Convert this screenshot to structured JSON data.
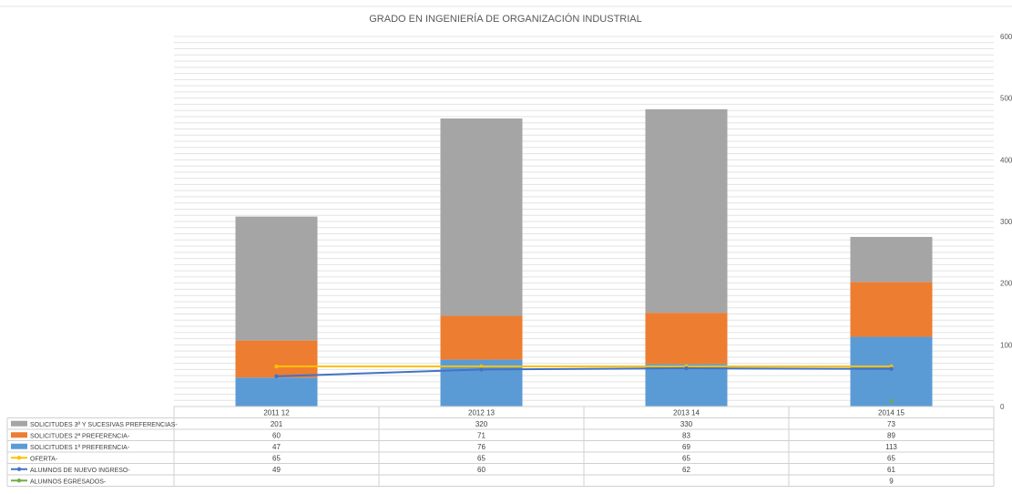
{
  "chart_data": {
    "type": "bar",
    "title": "GRADO EN INGENIERÍA DE ORGANIZACIÓN INDUSTRIAL",
    "categories": [
      "2011 12",
      "2012 13",
      "2013 14",
      "2014 15"
    ],
    "stacked": true,
    "ylim": [
      0,
      600
    ],
    "yticks": [
      "0",
      "100",
      "200",
      "300",
      "400",
      "500",
      "600"
    ],
    "grid": true,
    "legend_placement": "data table rows",
    "series": [
      {
        "name": "SOLICITUDES 3ª Y SUCESIVAS PREFERENCIAS-",
        "kind": "bar",
        "color": "#a5a5a5",
        "values": [
          201,
          320,
          330,
          73
        ]
      },
      {
        "name": "SOLICITUDES 2ª PREFERENCIA-",
        "kind": "bar",
        "color": "#ed7d31",
        "values": [
          60,
          71,
          83,
          89
        ]
      },
      {
        "name": "SOLICITUDES 1ª PREFERENCIA-",
        "kind": "bar",
        "color": "#5b9bd5",
        "values": [
          47,
          76,
          69,
          113
        ]
      },
      {
        "name": "OFERTA-",
        "kind": "line",
        "color": "#ffc000",
        "values": [
          65,
          65,
          65,
          65
        ]
      },
      {
        "name": "ALUMNOS DE NUEVO INGRESO-",
        "kind": "line",
        "color": "#4472c4",
        "values": [
          49,
          60,
          62,
          61
        ]
      },
      {
        "name": "ALUMNOS EGRESADOS-",
        "kind": "line",
        "color": "#70ad47",
        "values": [
          null,
          null,
          null,
          9
        ]
      }
    ]
  }
}
